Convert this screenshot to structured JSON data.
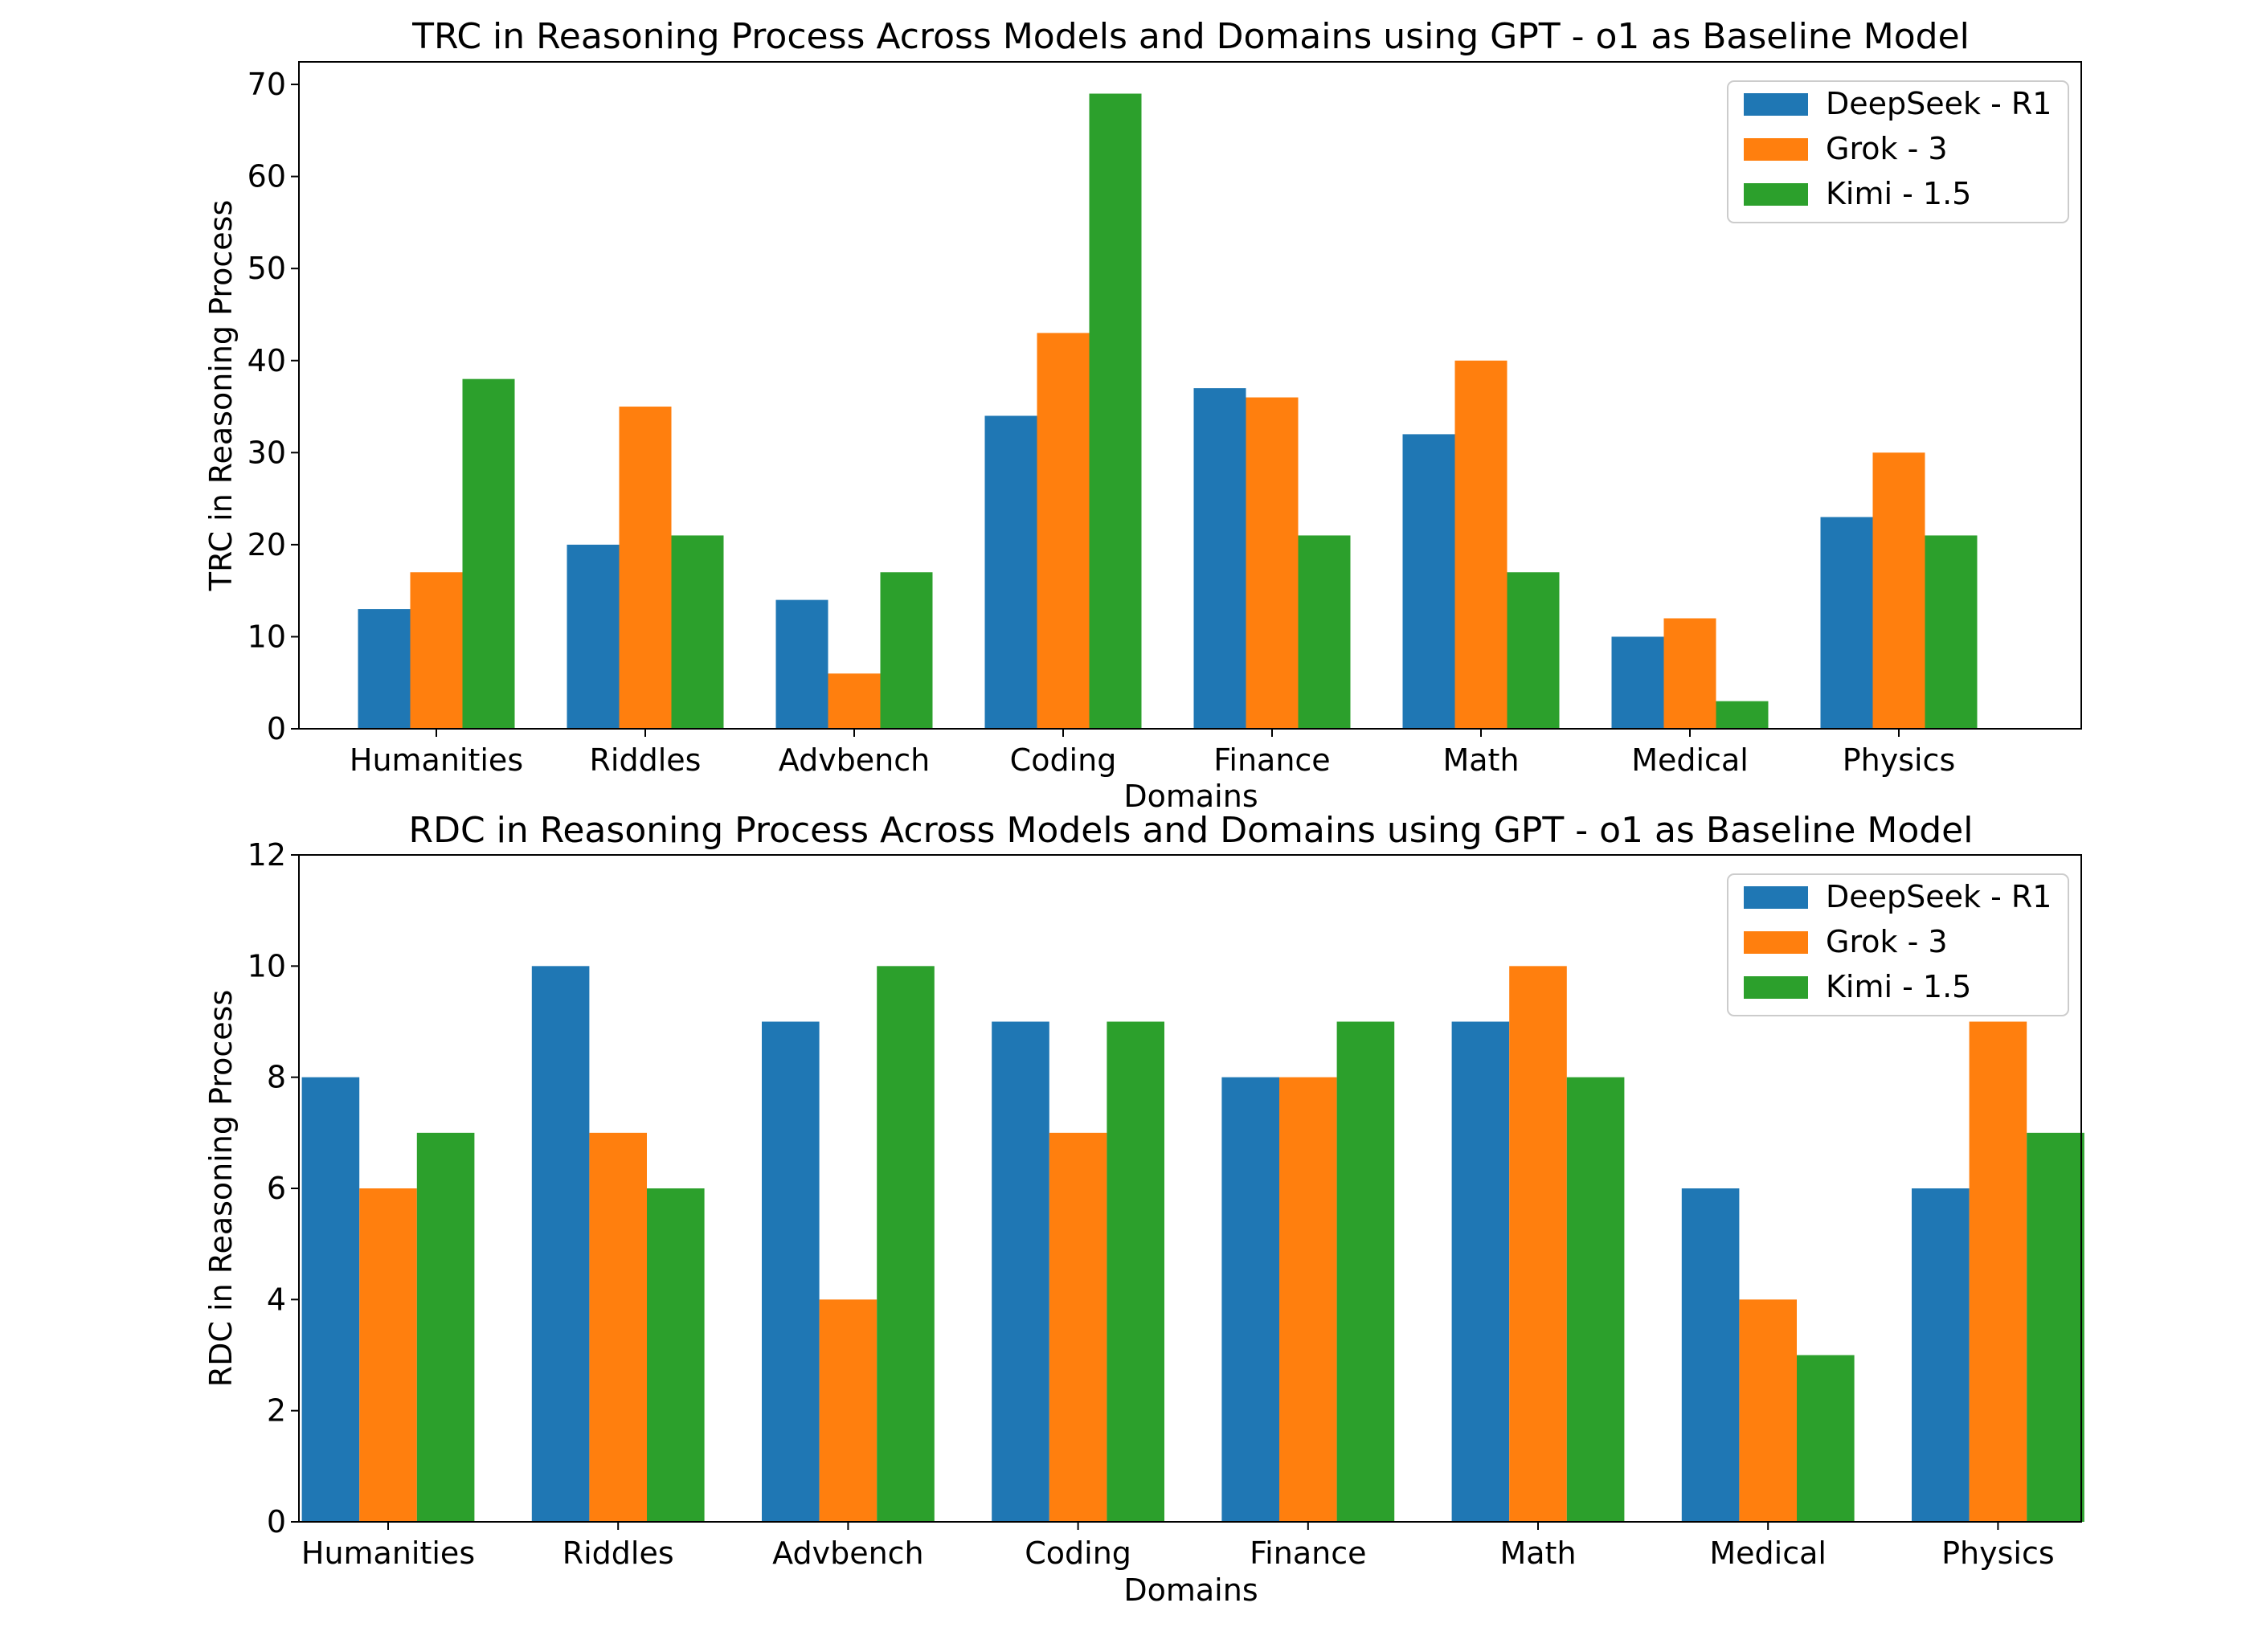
{
  "chart_data": [
    {
      "type": "bar",
      "title": "TRC in Reasoning Process Across Models and Domains using GPT - o1 as Baseline Model",
      "xlabel": "Domains",
      "ylabel": "TRC in Reasoning Process",
      "ylim": [
        0,
        72.45
      ],
      "yticks": [
        0,
        10,
        20,
        30,
        40,
        50,
        60,
        70
      ],
      "grid": false,
      "legend_position": "upper right",
      "categories": [
        "Humanities",
        "Riddles",
        "Advbench",
        "Coding",
        "Finance",
        "Math",
        "Medical",
        "Physics"
      ],
      "series": [
        {
          "name": "DeepSeek - R1",
          "color": "#1f77b4",
          "values": [
            13,
            20,
            14,
            34,
            37,
            32,
            10,
            23
          ]
        },
        {
          "name": "Grok - 3",
          "color": "#ff7f0e",
          "values": [
            17,
            35,
            6,
            43,
            36,
            40,
            12,
            30
          ]
        },
        {
          "name": "Kimi - 1.5",
          "color": "#2ca02c",
          "values": [
            38,
            21,
            17,
            69,
            21,
            17,
            3,
            21
          ]
        }
      ]
    },
    {
      "type": "bar",
      "title": "RDC in Reasoning Process Across Models and Domains using GPT - o1 as Baseline Model",
      "xlabel": "Domains",
      "ylabel": "RDC in Reasoning Process",
      "ylim": [
        0,
        12
      ],
      "yticks": [
        0,
        2,
        4,
        6,
        8,
        10,
        12
      ],
      "grid": false,
      "legend_position": "upper right",
      "categories": [
        "Humanities",
        "Riddles",
        "Advbench",
        "Coding",
        "Finance",
        "Math",
        "Medical",
        "Physics"
      ],
      "series": [
        {
          "name": "DeepSeek - R1",
          "color": "#1f77b4",
          "values": [
            8,
            10,
            9,
            9,
            8,
            9,
            6,
            6
          ]
        },
        {
          "name": "Grok - 3",
          "color": "#ff7f0e",
          "values": [
            6,
            7,
            4,
            7,
            8,
            10,
            4,
            9
          ]
        },
        {
          "name": "Kimi - 1.5",
          "color": "#2ca02c",
          "values": [
            7,
            6,
            10,
            9,
            9,
            8,
            3,
            7
          ]
        }
      ]
    }
  ]
}
